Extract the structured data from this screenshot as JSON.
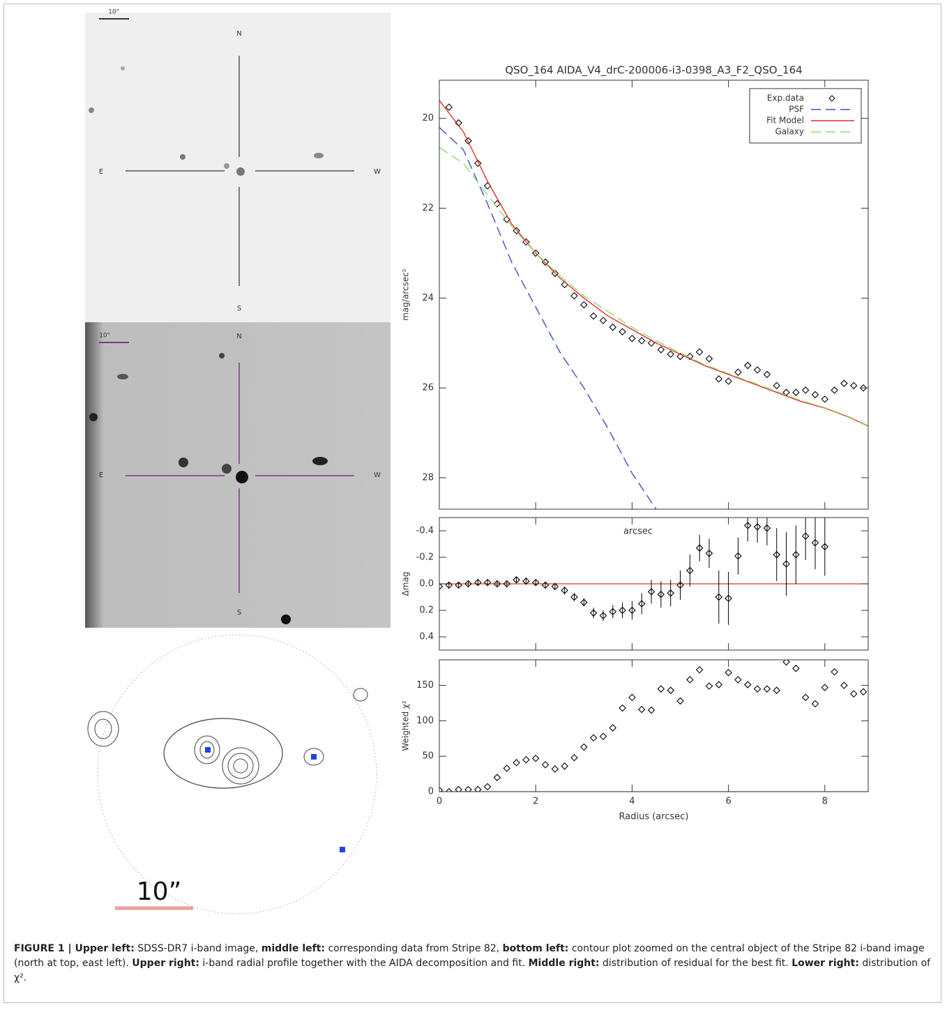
{
  "images": [
    {
      "scale": "10\"",
      "north": "N",
      "east": "E",
      "west": "W",
      "south": "S"
    },
    {
      "scale": "10\"",
      "north": "N",
      "east": "E",
      "west": "W",
      "south": "S"
    },
    {
      "scale": "10”"
    }
  ],
  "chart_data": [
    {
      "type": "line",
      "title": "QSO_164 AIDA_V4_drC-200006-i3-0398_A3_F2_QSO_164",
      "ylabel": "mag/arcsec²",
      "xlim": [
        0,
        8.9
      ],
      "xticks": [
        0,
        2,
        4,
        6,
        8
      ],
      "xtick_labels": false,
      "ylim": [
        19.15,
        28.7
      ],
      "y_inverted": true,
      "yticks": [
        20,
        22,
        24,
        26,
        28
      ],
      "legend": "upper right",
      "series": [
        {
          "name": "Exp.data",
          "kind": "points",
          "color": "#000000",
          "x": [
            0.2,
            0.4,
            0.6,
            0.8,
            1.0,
            1.2,
            1.4,
            1.6,
            1.8,
            2.0,
            2.2,
            2.4,
            2.6,
            2.8,
            3.0,
            3.2,
            3.4,
            3.6,
            3.8,
            4.0,
            4.2,
            4.4,
            4.6,
            4.8,
            5.0,
            5.2,
            5.4,
            5.6,
            5.8,
            6.0,
            6.2,
            6.4,
            6.6,
            6.8,
            7.0,
            7.2,
            7.4,
            7.6,
            7.8,
            8.0,
            8.2,
            8.4,
            8.6,
            8.8
          ],
          "values": [
            19.75,
            20.1,
            20.5,
            21.0,
            21.5,
            21.9,
            22.25,
            22.5,
            22.75,
            23.0,
            23.2,
            23.45,
            23.7,
            23.95,
            24.15,
            24.4,
            24.5,
            24.65,
            24.75,
            24.9,
            24.95,
            25.0,
            25.15,
            25.25,
            25.3,
            25.3,
            25.2,
            25.35,
            25.8,
            25.85,
            25.65,
            25.5,
            25.6,
            25.7,
            25.95,
            26.1,
            26.1,
            26.05,
            26.15,
            26.25,
            26.05,
            25.9,
            25.95,
            26.0
          ]
        },
        {
          "name": "PSF",
          "kind": "line",
          "dash": true,
          "color": "#3b4fc4",
          "x": [
            0,
            0.5,
            1,
            1.5,
            2,
            2.5,
            3,
            3.5,
            4,
            4.5
          ],
          "values": [
            20.2,
            20.7,
            21.9,
            23.2,
            24.2,
            25.2,
            26.0,
            26.9,
            27.9,
            28.7
          ]
        },
        {
          "name": "Fit Model",
          "kind": "line",
          "dash": false,
          "color": "#e0302a",
          "x": [
            0,
            0.5,
            1,
            1.5,
            2,
            2.5,
            3,
            3.5,
            4,
            4.5,
            5,
            5.5,
            6,
            6.5,
            7,
            7.5,
            8,
            8.5,
            8.9
          ],
          "values": [
            19.6,
            20.3,
            21.4,
            22.35,
            23.0,
            23.55,
            24.0,
            24.4,
            24.7,
            25.0,
            25.25,
            25.5,
            25.7,
            25.9,
            26.1,
            26.3,
            26.45,
            26.65,
            26.85
          ]
        },
        {
          "name": "Galaxy",
          "kind": "line",
          "dash": true,
          "color": "#8fdc6a",
          "x": [
            0,
            0.5,
            1,
            1.5,
            2,
            2.5,
            3,
            3.5,
            4,
            4.5,
            5,
            5.5,
            6,
            6.5,
            7,
            7.5,
            8,
            8.5,
            8.9
          ],
          "values": [
            20.65,
            21.0,
            21.7,
            22.4,
            23.0,
            23.5,
            23.95,
            24.3,
            24.65,
            24.95,
            25.22,
            25.48,
            25.68,
            25.88,
            26.08,
            26.28,
            26.44,
            26.64,
            26.84
          ]
        }
      ]
    },
    {
      "type": "residual",
      "ylabel": "Δmag",
      "annotation": "arcsec",
      "xlim": [
        0,
        8.9
      ],
      "xticks": [
        0,
        2,
        4,
        6,
        8
      ],
      "xtick_labels": false,
      "ylim": [
        -0.5,
        0.5
      ],
      "y_inverted": true,
      "yticks": [
        -0.4,
        -0.2,
        {
          "value": 0,
          "label": "0.0"
        },
        0.2,
        0.4
      ],
      "hline": 0,
      "hline_color": "#e0302a",
      "color": "#000000",
      "x": [
        0,
        0.2,
        0.4,
        0.6,
        0.8,
        1.0,
        1.2,
        1.4,
        1.6,
        1.8,
        2.0,
        2.2,
        2.4,
        2.6,
        2.8,
        3.0,
        3.2,
        3.4,
        3.6,
        3.8,
        4.0,
        4.2,
        4.4,
        4.6,
        4.8,
        5.0,
        5.2,
        5.4,
        5.6,
        5.8,
        6.0,
        6.2,
        6.4,
        6.6,
        6.8,
        7.0,
        7.2,
        7.4,
        7.6,
        7.8,
        8.0
      ],
      "values": [
        0.02,
        0.01,
        0.01,
        0,
        -0.01,
        -0.01,
        0,
        0,
        -0.03,
        -0.02,
        -0.01,
        0.01,
        0.02,
        0.05,
        0.1,
        0.14,
        0.22,
        0.24,
        0.21,
        0.2,
        0.2,
        0.15,
        0.06,
        0.08,
        0.07,
        0.01,
        -0.1,
        -0.27,
        -0.23,
        0.1,
        0.11,
        -0.21,
        -0.44,
        -0.43,
        -0.42,
        -0.22,
        -0.15,
        -0.22,
        -0.36,
        -0.31,
        -0.28
      ],
      "errors": [
        0.02,
        0.02,
        0.02,
        0.02,
        0.02,
        0.02,
        0.02,
        0.02,
        0.02,
        0.02,
        0.02,
        0.02,
        0.02,
        0.03,
        0.03,
        0.03,
        0.04,
        0.04,
        0.05,
        0.06,
        0.07,
        0.08,
        0.09,
        0.1,
        0.1,
        0.11,
        0.12,
        0.1,
        0.11,
        0.2,
        0.2,
        0.14,
        0.12,
        0.12,
        0.13,
        0.2,
        0.24,
        0.22,
        0.18,
        0.2,
        0.22
      ]
    },
    {
      "type": "scatter",
      "ylabel": "Weighted χ²",
      "xlabel": "Radius (arcsec)",
      "xlim": [
        0,
        8.9
      ],
      "xticks": [
        0,
        2,
        4,
        6,
        8
      ],
      "xtick_labels": true,
      "ylim": [
        0,
        186
      ],
      "yticks": [
        0,
        50,
        100,
        150
      ],
      "hline": 0,
      "hline_color": "#e0302a",
      "color": "#000000",
      "x": [
        0,
        0.2,
        0.4,
        0.6,
        0.8,
        1.0,
        1.2,
        1.4,
        1.6,
        1.8,
        2.0,
        2.2,
        2.4,
        2.6,
        2.8,
        3.0,
        3.2,
        3.4,
        3.6,
        3.8,
        4.0,
        4.2,
        4.4,
        4.6,
        4.8,
        5.0,
        5.2,
        5.4,
        5.6,
        5.8,
        6.0,
        6.2,
        6.4,
        6.6,
        6.8,
        7.0,
        7.2,
        7.4,
        7.6,
        7.8,
        8.0,
        8.2,
        8.4,
        8.6,
        8.8
      ],
      "values": [
        2,
        0,
        3,
        3,
        3,
        7,
        20,
        33,
        41,
        45,
        47,
        38,
        32,
        36,
        48,
        63,
        76,
        78,
        90,
        118,
        133,
        116,
        115,
        145,
        143,
        128,
        158,
        172,
        149,
        151,
        168,
        158,
        151,
        145,
        145,
        143,
        183,
        174,
        133,
        124,
        147,
        169,
        150,
        138,
        141
      ]
    }
  ],
  "caption": [
    {
      "text": "FIGURE 1 | Upper left:",
      "bold": true
    },
    {
      "text": " SDSS-DR7 i-band image, ",
      "bold": false
    },
    {
      "text": "middle left:",
      "bold": true
    },
    {
      "text": " corresponding data from Stripe 82, ",
      "bold": false
    },
    {
      "text": "bottom left:",
      "bold": true
    },
    {
      "text": " contour plot zoomed on the central object of the Stripe 82 i-band image (north at top, east left). ",
      "bold": false
    },
    {
      "text": "Upper right:",
      "bold": true
    },
    {
      "text": " i-band radial profile together with the AIDA decomposition and fit. ",
      "bold": false
    },
    {
      "text": "Middle right:",
      "bold": true
    },
    {
      "text": " distribution of residual for the best fit. ",
      "bold": false
    },
    {
      "text": "Lower right:",
      "bold": true
    },
    {
      "text": " distribution of χ².",
      "bold": false
    }
  ]
}
